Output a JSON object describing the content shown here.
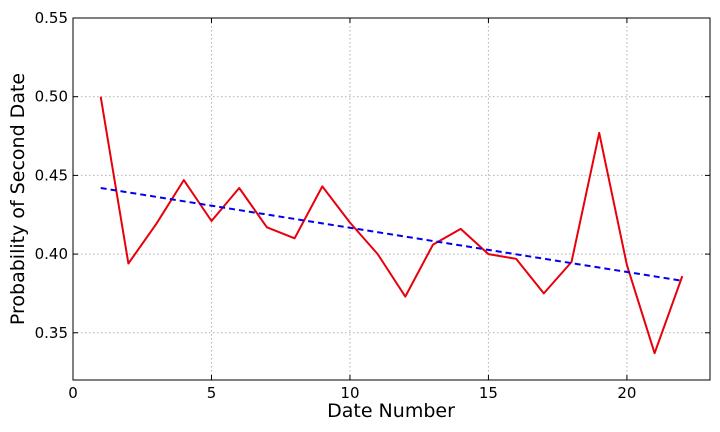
{
  "chart_data": {
    "type": "line",
    "title": "",
    "xlabel": "Date Number",
    "ylabel": "Probability of Second Date",
    "xlim": [
      0,
      23
    ],
    "ylim": [
      0.32,
      0.55
    ],
    "xticks": [
      0,
      5,
      10,
      15,
      20
    ],
    "xtick_labels": [
      "0",
      "5",
      "10",
      "15",
      "20"
    ],
    "yticks": [
      0.35,
      0.4,
      0.45,
      0.5,
      0.55
    ],
    "ytick_labels": [
      "0.35",
      "0.40",
      "0.45",
      "0.50",
      "0.55"
    ],
    "grid": true,
    "series": [
      {
        "style": "solid",
        "color": "#e8000b",
        "x": [
          1,
          2,
          3,
          4,
          5,
          6,
          7,
          8,
          9,
          10,
          11,
          12,
          13,
          14,
          15,
          16,
          17,
          18,
          19,
          20,
          21,
          22
        ],
        "y": [
          0.5,
          0.394,
          0.419,
          0.447,
          0.421,
          0.442,
          0.417,
          0.41,
          0.443,
          0.42,
          0.4,
          0.373,
          0.406,
          0.416,
          0.4,
          0.397,
          0.375,
          0.395,
          0.477,
          0.393,
          0.337,
          0.386
        ]
      },
      {
        "style": "dashed",
        "color": "#0000ee",
        "x": [
          1,
          22
        ],
        "y": [
          0.442,
          0.383
        ]
      }
    ]
  }
}
